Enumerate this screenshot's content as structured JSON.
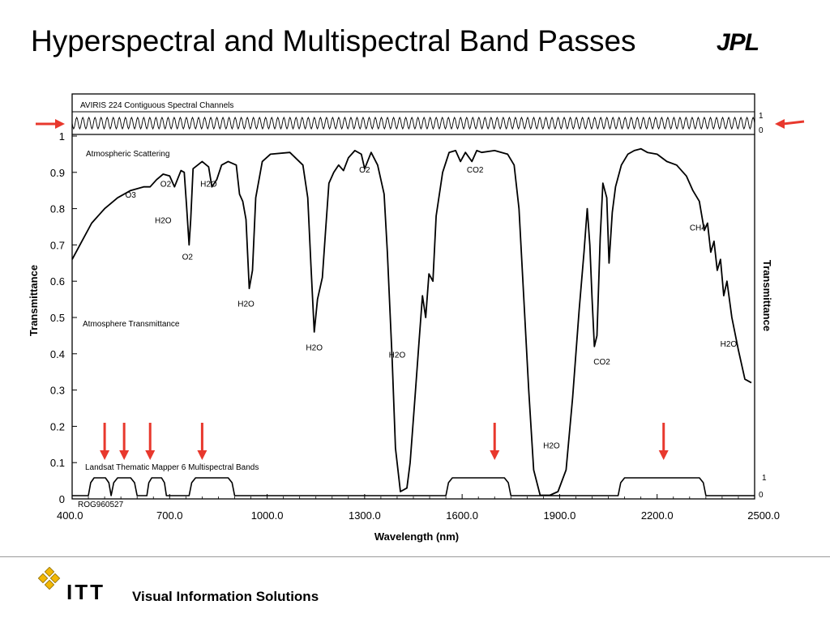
{
  "slide": {
    "title": "Hyperspectral and Multispectral Band Passes",
    "logo_text": "JPL",
    "footer_brand": "ITT",
    "footer_text": "Visual Information Solutions"
  },
  "colors": {
    "arrow": "#e8382d",
    "ink": "#000000",
    "footer_rule": "#9a9a9a"
  },
  "chart_data": {
    "type": "line",
    "xlabel": "Wavelength (nm)",
    "ylabel": "Transmittance",
    "ylabel_right": "Transmittance",
    "xlim": [
      400,
      2500
    ],
    "ylim": [
      0,
      1
    ],
    "x_ticks": [
      "400.0",
      "700.0",
      "1000.0",
      "1300.0",
      "1600.0",
      "1900.0",
      "2200.0",
      "2500.0"
    ],
    "x_tick_values": [
      400,
      700,
      1000,
      1300,
      1600,
      1900,
      2200,
      2500
    ],
    "y_ticks": [
      "0",
      "0.1",
      "0.2",
      "0.3",
      "0.4",
      "0.5",
      "0.6",
      "0.7",
      "0.8",
      "0.9",
      "1"
    ],
    "y_tick_values": [
      0,
      0.1,
      0.2,
      0.3,
      0.4,
      0.5,
      0.6,
      0.7,
      0.8,
      0.9,
      1
    ],
    "aviris": {
      "label": "AVIRIS 224 Contiguous Spectral Channels",
      "channels": 224,
      "scale_top": "1",
      "scale_bottom": "0"
    },
    "atmosphere": {
      "label": "Atmosphere Transmittance",
      "scattering_label": "Atmospheric Scattering",
      "points": [
        [
          400,
          0.66
        ],
        [
          430,
          0.71
        ],
        [
          460,
          0.76
        ],
        [
          500,
          0.8
        ],
        [
          540,
          0.83
        ],
        [
          580,
          0.85
        ],
        [
          620,
          0.86
        ],
        [
          640,
          0.86
        ],
        [
          660,
          0.88
        ],
        [
          680,
          0.895
        ],
        [
          700,
          0.89
        ],
        [
          715,
          0.86
        ],
        [
          735,
          0.905
        ],
        [
          745,
          0.9
        ],
        [
          752,
          0.81
        ],
        [
          760,
          0.7
        ],
        [
          765,
          0.77
        ],
        [
          772,
          0.91
        ],
        [
          800,
          0.93
        ],
        [
          820,
          0.915
        ],
        [
          830,
          0.86
        ],
        [
          845,
          0.88
        ],
        [
          860,
          0.92
        ],
        [
          880,
          0.93
        ],
        [
          905,
          0.92
        ],
        [
          915,
          0.84
        ],
        [
          925,
          0.82
        ],
        [
          935,
          0.77
        ],
        [
          945,
          0.58
        ],
        [
          955,
          0.63
        ],
        [
          965,
          0.83
        ],
        [
          985,
          0.93
        ],
        [
          1010,
          0.95
        ],
        [
          1070,
          0.955
        ],
        [
          1110,
          0.92
        ],
        [
          1125,
          0.83
        ],
        [
          1135,
          0.64
        ],
        [
          1145,
          0.46
        ],
        [
          1155,
          0.55
        ],
        [
          1170,
          0.61
        ],
        [
          1180,
          0.74
        ],
        [
          1190,
          0.87
        ],
        [
          1205,
          0.9
        ],
        [
          1220,
          0.92
        ],
        [
          1235,
          0.905
        ],
        [
          1250,
          0.94
        ],
        [
          1270,
          0.96
        ],
        [
          1290,
          0.95
        ],
        [
          1300,
          0.91
        ],
        [
          1320,
          0.955
        ],
        [
          1340,
          0.92
        ],
        [
          1360,
          0.84
        ],
        [
          1370,
          0.68
        ],
        [
          1385,
          0.38
        ],
        [
          1395,
          0.14
        ],
        [
          1410,
          0.02
        ],
        [
          1430,
          0.03
        ],
        [
          1440,
          0.1
        ],
        [
          1455,
          0.28
        ],
        [
          1468,
          0.44
        ],
        [
          1478,
          0.56
        ],
        [
          1488,
          0.5
        ],
        [
          1498,
          0.62
        ],
        [
          1510,
          0.6
        ],
        [
          1520,
          0.78
        ],
        [
          1540,
          0.9
        ],
        [
          1560,
          0.955
        ],
        [
          1580,
          0.96
        ],
        [
          1595,
          0.93
        ],
        [
          1610,
          0.955
        ],
        [
          1630,
          0.93
        ],
        [
          1645,
          0.96
        ],
        [
          1660,
          0.955
        ],
        [
          1700,
          0.96
        ],
        [
          1740,
          0.95
        ],
        [
          1760,
          0.92
        ],
        [
          1775,
          0.8
        ],
        [
          1790,
          0.55
        ],
        [
          1805,
          0.3
        ],
        [
          1820,
          0.08
        ],
        [
          1840,
          0.01
        ],
        [
          1870,
          0.01
        ],
        [
          1895,
          0.02
        ],
        [
          1920,
          0.08
        ],
        [
          1940,
          0.28
        ],
        [
          1960,
          0.52
        ],
        [
          1975,
          0.68
        ],
        [
          1985,
          0.8
        ],
        [
          1993,
          0.7
        ],
        [
          2000,
          0.55
        ],
        [
          2007,
          0.42
        ],
        [
          2015,
          0.45
        ],
        [
          2025,
          0.72
        ],
        [
          2033,
          0.87
        ],
        [
          2045,
          0.83
        ],
        [
          2052,
          0.65
        ],
        [
          2062,
          0.79
        ],
        [
          2072,
          0.86
        ],
        [
          2090,
          0.92
        ],
        [
          2110,
          0.95
        ],
        [
          2130,
          0.96
        ],
        [
          2150,
          0.965
        ],
        [
          2170,
          0.955
        ],
        [
          2200,
          0.95
        ],
        [
          2230,
          0.93
        ],
        [
          2260,
          0.92
        ],
        [
          2290,
          0.89
        ],
        [
          2310,
          0.85
        ],
        [
          2330,
          0.82
        ],
        [
          2345,
          0.74
        ],
        [
          2355,
          0.76
        ],
        [
          2365,
          0.68
        ],
        [
          2375,
          0.71
        ],
        [
          2385,
          0.63
        ],
        [
          2395,
          0.66
        ],
        [
          2405,
          0.56
        ],
        [
          2415,
          0.6
        ],
        [
          2430,
          0.5
        ],
        [
          2450,
          0.41
        ],
        [
          2470,
          0.33
        ],
        [
          2490,
          0.32
        ]
      ]
    },
    "landsat": {
      "label": "Landsat Thematic Mapper 6 Multispectral Bands",
      "scale_top": "1",
      "scale_bottom": "0",
      "bands": [
        [
          450,
          520
        ],
        [
          520,
          600
        ],
        [
          630,
          690
        ],
        [
          760,
          900
        ],
        [
          1550,
          1750
        ],
        [
          2080,
          2350
        ]
      ]
    },
    "annotations": [
      {
        "text": "O3",
        "x": 580,
        "y": 0.83
      },
      {
        "text": "O2",
        "x": 688,
        "y": 0.86
      },
      {
        "text": "H2O",
        "x": 680,
        "y": 0.76
      },
      {
        "text": "H2O",
        "x": 820,
        "y": 0.86
      },
      {
        "text": "O2",
        "x": 755,
        "y": 0.66
      },
      {
        "text": "H2O",
        "x": 935,
        "y": 0.53
      },
      {
        "text": "H2O",
        "x": 1145,
        "y": 0.41
      },
      {
        "text": "O2",
        "x": 1300,
        "y": 0.9
      },
      {
        "text": "CO2",
        "x": 1640,
        "y": 0.9
      },
      {
        "text": "H2O",
        "x": 1400,
        "y": 0.39
      },
      {
        "text": "H2O",
        "x": 1875,
        "y": 0.14
      },
      {
        "text": "CO2",
        "x": 2030,
        "y": 0.37
      },
      {
        "text": "CH4",
        "x": 2325,
        "y": 0.74
      },
      {
        "text": "H2O",
        "x": 2420,
        "y": 0.42
      }
    ],
    "arrows_down": [
      500,
      560,
      640,
      800,
      1700,
      2220
    ],
    "arrows_horizontal": [
      "left-edge",
      "right-edge"
    ],
    "figure_id": "ROG960527"
  }
}
